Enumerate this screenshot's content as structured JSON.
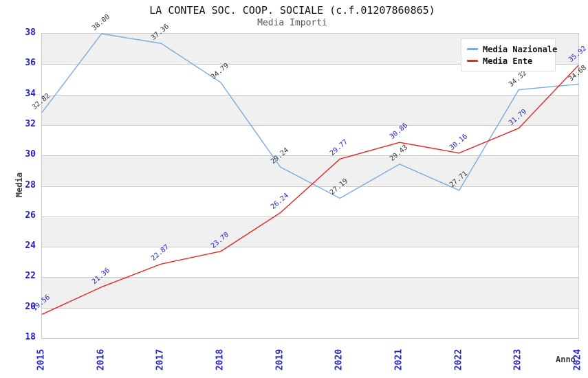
{
  "header": {
    "title": "LA CONTEA SOC. COOP. SOCIALE (c.f.01207860865)",
    "subtitle": "Media Importi"
  },
  "chart_data": {
    "type": "line",
    "x": [
      2015,
      2016,
      2017,
      2018,
      2019,
      2020,
      2021,
      2022,
      2023,
      2024
    ],
    "series": [
      {
        "name": "Media Nazionale",
        "color": "#7aabdf",
        "label_color": "#333333",
        "values": [
          32.82,
          38.0,
          37.36,
          34.79,
          29.24,
          27.19,
          29.43,
          27.71,
          34.32,
          34.68
        ]
      },
      {
        "name": "Media Ente",
        "color": "#ee2222",
        "label_color": "#2222cc",
        "values": [
          19.56,
          21.36,
          22.87,
          23.7,
          26.24,
          29.77,
          30.86,
          30.16,
          31.79,
          35.92
        ]
      }
    ],
    "xlabel": "Anno",
    "ylabel": "Media",
    "ylim": [
      18,
      38
    ],
    "y_ticks": [
      18,
      20,
      22,
      24,
      26,
      28,
      30,
      32,
      34,
      36,
      38
    ],
    "grid": true,
    "band_colors": [
      "#f0f0f0",
      "#ffffff"
    ],
    "gridline_color": "#cccccc",
    "tick_color": "#2222cc",
    "legend_position": "top-right",
    "point_label_rotation": -40,
    "point_label_decimals": 2
  }
}
